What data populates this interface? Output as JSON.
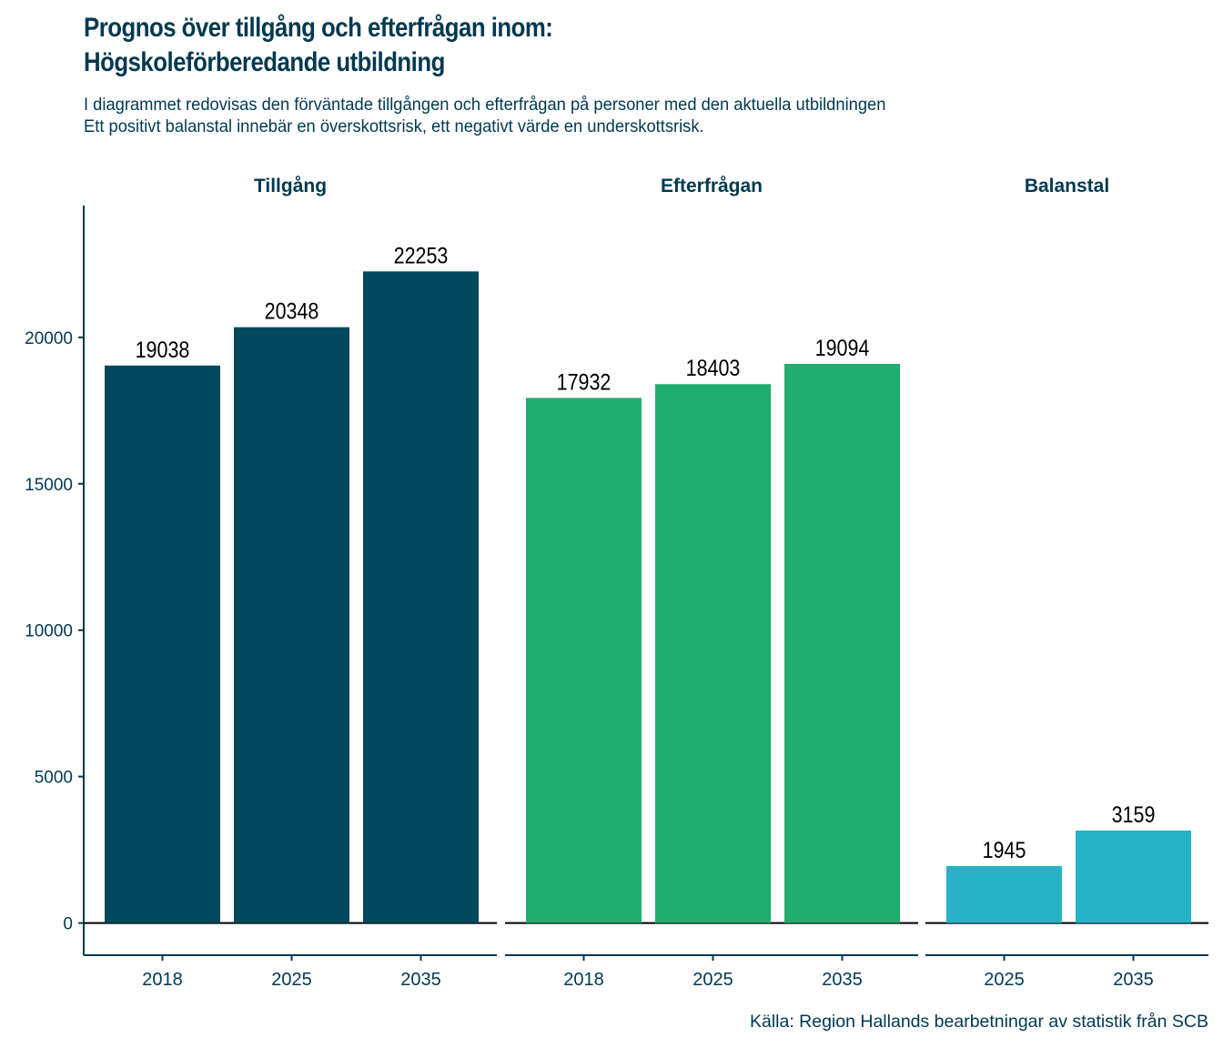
{
  "title_line1": "Prognos över tillgång och efterfrågan inom:",
  "title_line2": "Högskoleförberedande utbildning",
  "subtitle_line1": "I diagrammet redovisas den förväntade tillgången och efterfrågan på personer med den aktuella utbildningen",
  "subtitle_line2": "Ett positivt balanstal innebär en överskottsrisk, ett negativt värde en underskottsrisk.",
  "caption": "Källa: Region Hallands bearbetningar av statistik från SCB",
  "colors": {
    "text": "#00394f",
    "axis": "#00394f",
    "zero_line": "#000000"
  },
  "chart_data": {
    "type": "bar",
    "title": "Prognos över tillgång och efterfrågan inom: Högskoleförberedande utbildning",
    "xlabel": "",
    "ylabel": "",
    "ylim": [
      -1100,
      24500
    ],
    "yticks": [
      0,
      5000,
      10000,
      15000,
      20000
    ],
    "grid": false,
    "legend": "none",
    "facets": [
      {
        "name": "Tillgång",
        "color": "#00485d",
        "categories": [
          "2018",
          "2025",
          "2035"
        ],
        "values": [
          19038,
          20348,
          22253
        ],
        "labels": [
          "19038",
          "20348",
          "22253"
        ]
      },
      {
        "name": "Efterfrågan",
        "color": "#21ad6e",
        "categories": [
          "2018",
          "2025",
          "2035"
        ],
        "values": [
          17932,
          18403,
          19094
        ],
        "labels": [
          "17932",
          "18403",
          "19094"
        ]
      },
      {
        "name": "Balanstal",
        "color": "#28b2c6",
        "categories": [
          "2025",
          "2035"
        ],
        "values": [
          1945,
          3159
        ],
        "labels": [
          "1945",
          "3159"
        ]
      }
    ]
  }
}
